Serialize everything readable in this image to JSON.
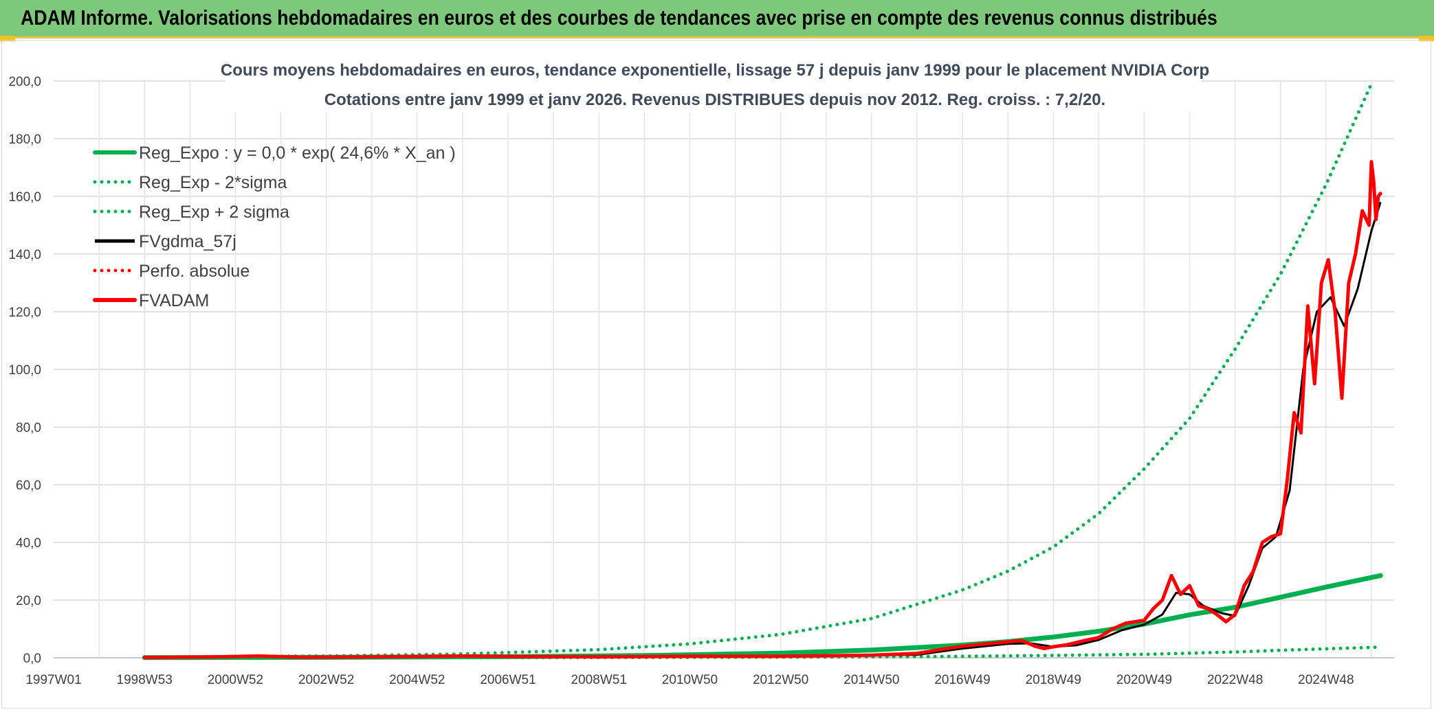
{
  "header": {
    "title": "ADAM Informe. Valorisations hebdomadaires en euros et des courbes de tendances avec prise en compte des revenus connus distribués"
  },
  "chart_data": {
    "type": "line",
    "title_line1": "Cours moyens hebdomadaires en euros, tendance exponentielle, lissage 57 j depuis janv 1999 pour le placement NVIDIA Corp",
    "title_line2": "Cotations entre janv 1999 et janv 2026. Revenus DISTRIBUES depuis nov 2012. Reg. croiss. : 7,2/20.",
    "xlabel": "",
    "ylabel": "",
    "x_range": [
      1997.0,
      2026.5
    ],
    "ylim": [
      0,
      200
    ],
    "y_ticks": [
      "0,0",
      "20,0",
      "40,0",
      "60,0",
      "80,0",
      "100,0",
      "120,0",
      "140,0",
      "160,0",
      "180,0",
      "200,0"
    ],
    "x_tick_labels": [
      "1997W01",
      "1998W53",
      "2000W52",
      "2002W52",
      "2004W52",
      "2006W51",
      "2008W51",
      "2010W50",
      "2012W50",
      "2014W50",
      "2016W49",
      "2018W49",
      "2020W49",
      "2022W48",
      "2024W48"
    ],
    "x_tick_years": [
      1997.0,
      1999.0,
      2001.0,
      2003.0,
      2005.0,
      2007.0,
      2009.0,
      2011.0,
      2013.0,
      2015.0,
      2017.0,
      2019.0,
      2021.0,
      2023.0,
      2025.0
    ],
    "grid": true,
    "legend_position": "top-left",
    "colors": {
      "reg_expo": "#00b050",
      "reg_minus": "#00b050",
      "reg_plus": "#00b050",
      "fvgdma": "#000000",
      "perfo": "#ff0000",
      "fvadam": "#ff0000"
    },
    "series": [
      {
        "key": "reg_expo",
        "name": "Reg_Expo : y = 0,0 * exp( 24,6% *  X_an )",
        "style": "solid-thick",
        "x": [
          1999.0,
          2003.0,
          2007.0,
          2010.0,
          2013.0,
          2015.0,
          2017.0,
          2018.0,
          2019.0,
          2020.0,
          2021.0,
          2022.0,
          2023.0,
          2024.0,
          2025.0,
          2026.2
        ],
        "y": [
          0.05,
          0.14,
          0.37,
          0.78,
          1.6,
          2.7,
          4.4,
          5.6,
          7.2,
          9.2,
          11.7,
          14.9,
          17.5,
          21.0,
          24.5,
          28.5
        ]
      },
      {
        "key": "reg_minus",
        "name": "Reg_Exp - 2*sigma",
        "style": "dotted",
        "x": [
          1999.0,
          2005.0,
          2010.0,
          2014.0,
          2017.0,
          2019.0,
          2021.0,
          2022.0,
          2023.0,
          2024.0,
          2025.0,
          2026.2
        ],
        "y": [
          0.0,
          0.02,
          0.1,
          0.25,
          0.5,
          0.8,
          1.2,
          1.6,
          2.0,
          2.6,
          3.1,
          3.7
        ]
      },
      {
        "key": "reg_plus",
        "name": "Reg_Exp + 2 sigma",
        "style": "dotted",
        "x": [
          1999.0,
          2003.0,
          2006.0,
          2009.0,
          2011.0,
          2013.0,
          2015.0,
          2017.0,
          2018.0,
          2019.0,
          2020.0,
          2021.0,
          2022.0,
          2023.0,
          2024.0,
          2025.0,
          2026.0
        ],
        "y": [
          0.2,
          0.6,
          1.3,
          2.8,
          4.8,
          8.1,
          13.6,
          23.5,
          30.0,
          38.4,
          50.0,
          65.5,
          83.0,
          107.0,
          133.0,
          164.0,
          199.0
        ]
      },
      {
        "key": "fvgdma",
        "name": "FVgdma_57j",
        "style": "solid",
        "x": [
          1999.0,
          2001.0,
          2003.0,
          2006.0,
          2008.0,
          2010.0,
          2013.0,
          2016.0,
          2017.0,
          2018.0,
          2018.5,
          2019.0,
          2019.5,
          2020.0,
          2020.5,
          2021.0,
          2021.4,
          2021.7,
          2022.0,
          2022.3,
          2022.7,
          2023.0,
          2023.3,
          2023.6,
          2023.9,
          2024.2,
          2024.5,
          2024.8,
          2025.1,
          2025.4,
          2025.7,
          2026.0,
          2026.2
        ],
        "y": [
          0.1,
          0.4,
          0.3,
          0.5,
          0.4,
          0.6,
          0.6,
          1.0,
          3.2,
          4.8,
          5.0,
          3.8,
          4.3,
          6.2,
          9.5,
          11.5,
          15.0,
          22.5,
          22.0,
          18.0,
          15.5,
          14.5,
          25.0,
          38.0,
          42.0,
          58.0,
          100.0,
          120.0,
          125.0,
          115.0,
          128.0,
          148.0,
          158.0
        ]
      },
      {
        "key": "perfo",
        "name": "Perfo. absolue",
        "style": "dotted",
        "x": [],
        "y": []
      },
      {
        "key": "fvadam",
        "name": "FVADAM",
        "style": "solid-thick",
        "x": [
          1999.0,
          2000.5,
          2001.5,
          2002.5,
          2004.0,
          2006.0,
          2007.5,
          2009.0,
          2011.0,
          2013.0,
          2015.0,
          2016.0,
          2016.5,
          2017.0,
          2017.5,
          2018.0,
          2018.3,
          2018.6,
          2018.8,
          2019.0,
          2019.3,
          2019.7,
          2020.0,
          2020.3,
          2020.6,
          2021.0,
          2021.2,
          2021.4,
          2021.6,
          2021.8,
          2022.0,
          2022.2,
          2022.4,
          2022.6,
          2022.8,
          2023.0,
          2023.2,
          2023.4,
          2023.6,
          2023.8,
          2024.0,
          2024.15,
          2024.3,
          2024.45,
          2024.6,
          2024.75,
          2024.9,
          2025.05,
          2025.2,
          2025.35,
          2025.5,
          2025.65,
          2025.8,
          2025.95,
          2026.0,
          2026.05,
          2026.1,
          2026.15,
          2026.2
        ],
        "y": [
          0.1,
          0.3,
          0.6,
          0.2,
          0.3,
          0.6,
          0.4,
          0.3,
          0.5,
          0.5,
          0.9,
          1.5,
          2.8,
          4.0,
          4.8,
          5.5,
          6.0,
          4.0,
          3.2,
          3.8,
          4.5,
          6.0,
          7.0,
          10.0,
          12.0,
          13.0,
          17.0,
          20.0,
          28.5,
          22.0,
          25.0,
          18.0,
          17.0,
          15.0,
          12.5,
          15.0,
          25.0,
          30.0,
          40.0,
          42.0,
          43.0,
          62.0,
          85.0,
          78.0,
          122.0,
          95.0,
          130.0,
          138.0,
          120.0,
          90.0,
          130.0,
          140.0,
          155.0,
          150.0,
          172.0,
          165.0,
          152.0,
          160.0,
          161.0
        ]
      }
    ]
  }
}
